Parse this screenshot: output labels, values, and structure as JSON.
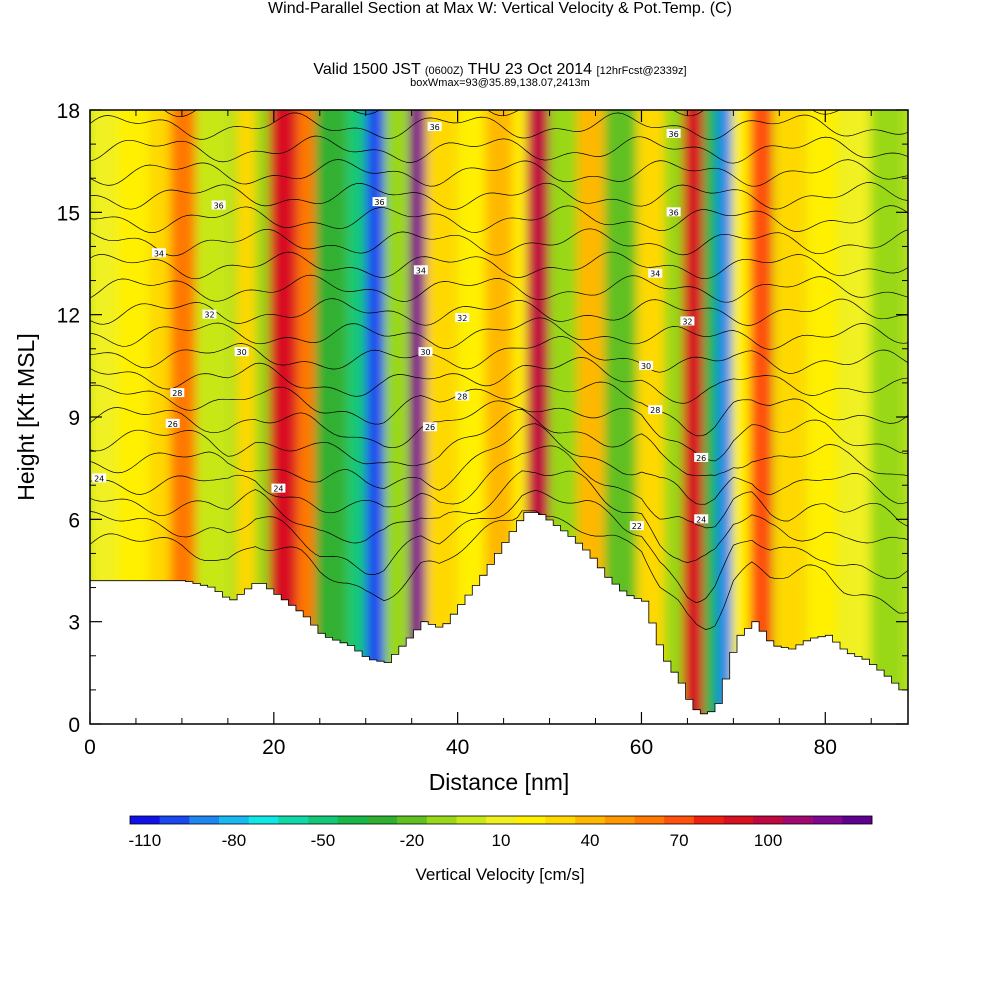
{
  "header": {
    "title": "Wind-Parallel Section at Max W: Vertical Velocity & Pot.Temp.",
    "title_unit": "(C)",
    "valid_prefix": "Valid 1500 JST",
    "valid_z": "(0600Z)",
    "valid_date": "THU 23 Oct 2014",
    "forecast": "[12hrFcst@2339z]",
    "box_info": "boxWmax=93@35.89,138.07,2413m"
  },
  "chart_data": {
    "type": "heatmap",
    "title": "Wind-Parallel Section at Max W: Vertical Velocity & Pot.Temp.",
    "xlabel": "Distance [nm]",
    "ylabel": "Height [Kft MSL]",
    "xlim": [
      0,
      89
    ],
    "ylim": [
      0,
      18
    ],
    "xticks": [
      "0",
      "20",
      "40",
      "60",
      "80"
    ],
    "yticks": [
      "0",
      "3",
      "6",
      "9",
      "12",
      "15",
      "18"
    ],
    "colorbar": {
      "title": "Vertical Velocity [cm/s]",
      "labels": [
        "-110",
        "-80",
        "-50",
        "-20",
        "10",
        "40",
        "70",
        "100"
      ],
      "colors": [
        "#1010e8",
        "#1a48f0",
        "#1e86f0",
        "#18b8f0",
        "#10e8e8",
        "#10d8a8",
        "#12c878",
        "#18b848",
        "#30b030",
        "#60c020",
        "#98d818",
        "#c8e818",
        "#f0f020",
        "#fff000",
        "#ffd800",
        "#ffb800",
        "#ff9800",
        "#ff7800",
        "#ff5010",
        "#f02010",
        "#d81020",
        "#c00840",
        "#a00870",
        "#800890",
        "#600090"
      ]
    },
    "velocity_bands": [
      {
        "x": 1.5,
        "w": 3,
        "value": 0
      },
      {
        "x": 4.5,
        "w": 3,
        "value": 10
      },
      {
        "x": 7.5,
        "w": 2,
        "value": 20
      },
      {
        "x": 10,
        "w": 2.5,
        "value": 45
      },
      {
        "x": 13,
        "w": 3,
        "value": -5
      },
      {
        "x": 17,
        "w": 2,
        "value": 20
      },
      {
        "x": 19,
        "w": 2,
        "value": -20
      },
      {
        "x": 21,
        "w": 3,
        "value": 70
      },
      {
        "x": 23.5,
        "w": 2,
        "value": 40
      },
      {
        "x": 26,
        "w": 3,
        "value": -35
      },
      {
        "x": 29,
        "w": 2,
        "value": -50
      },
      {
        "x": 31,
        "w": 2,
        "value": -100
      },
      {
        "x": 33,
        "w": 2,
        "value": -15
      },
      {
        "x": 35.5,
        "w": 1.5,
        "value": 100
      },
      {
        "x": 38,
        "w": 3,
        "value": 20
      },
      {
        "x": 41.5,
        "w": 3,
        "value": 5
      },
      {
        "x": 44.5,
        "w": 3,
        "value": 30
      },
      {
        "x": 47,
        "w": 2,
        "value": 10
      },
      {
        "x": 48.5,
        "w": 2,
        "value": 75
      },
      {
        "x": 51.5,
        "w": 3,
        "value": -15
      },
      {
        "x": 54.5,
        "w": 3,
        "value": 30
      },
      {
        "x": 57.5,
        "w": 3,
        "value": -25
      },
      {
        "x": 61,
        "w": 3,
        "value": 20
      },
      {
        "x": 63.5,
        "w": 2,
        "value": -15
      },
      {
        "x": 65.5,
        "w": 2,
        "value": 70
      },
      {
        "x": 67.5,
        "w": 1.5,
        "value": -40
      },
      {
        "x": 69,
        "w": 1.5,
        "value": -90
      },
      {
        "x": 70.8,
        "w": 2,
        "value": 10
      },
      {
        "x": 72.8,
        "w": 2,
        "value": 50
      },
      {
        "x": 76,
        "w": 3,
        "value": 20
      },
      {
        "x": 79.5,
        "w": 3,
        "value": 5
      },
      {
        "x": 83,
        "w": 3,
        "value": 0
      },
      {
        "x": 86.5,
        "w": 3,
        "value": -20
      }
    ],
    "terrain": {
      "x": [
        0,
        5,
        10,
        13,
        15,
        18,
        20,
        23,
        25,
        28,
        30,
        32,
        34,
        36,
        38,
        40,
        42,
        44,
        46,
        47,
        48.5,
        50,
        52,
        54,
        56,
        58,
        60,
        62,
        64,
        65,
        66,
        67,
        68,
        69,
        70,
        72,
        74,
        76,
        78,
        80,
        82,
        84,
        86,
        88,
        89
      ],
      "y": [
        4.2,
        4.2,
        4.2,
        4.0,
        3.6,
        4.2,
        3.8,
        3.2,
        2.6,
        2.3,
        1.9,
        1.8,
        2.4,
        3.0,
        2.8,
        3.5,
        4.2,
        5.0,
        5.8,
        6.2,
        6.2,
        5.9,
        5.5,
        5.0,
        4.3,
        3.8,
        3.6,
        2.0,
        1.2,
        0.6,
        0.3,
        0.3,
        0.6,
        1.5,
        2.5,
        3.0,
        2.3,
        2.2,
        2.5,
        2.6,
        2.1,
        1.9,
        1.5,
        1.0,
        1.0
      ]
    },
    "isotherm_labels": [
      {
        "x": 37.5,
        "y": 17.5,
        "text": "36"
      },
      {
        "x": 63.5,
        "y": 17.3,
        "text": "36"
      },
      {
        "x": 14,
        "y": 15.2,
        "text": "36"
      },
      {
        "x": 31.5,
        "y": 15.3,
        "text": "36"
      },
      {
        "x": 63.5,
        "y": 15.0,
        "text": "36"
      },
      {
        "x": 7.5,
        "y": 13.8,
        "text": "34"
      },
      {
        "x": 36,
        "y": 13.3,
        "text": "34"
      },
      {
        "x": 61.5,
        "y": 13.2,
        "text": "34"
      },
      {
        "x": 13,
        "y": 12.0,
        "text": "32"
      },
      {
        "x": 40.5,
        "y": 11.9,
        "text": "32"
      },
      {
        "x": 65,
        "y": 11.8,
        "text": "32"
      },
      {
        "x": 16.5,
        "y": 10.9,
        "text": "30"
      },
      {
        "x": 36.5,
        "y": 10.9,
        "text": "30"
      },
      {
        "x": 60.5,
        "y": 10.5,
        "text": "30"
      },
      {
        "x": 9.5,
        "y": 9.7,
        "text": "28"
      },
      {
        "x": 40.5,
        "y": 9.6,
        "text": "28"
      },
      {
        "x": 61.5,
        "y": 9.2,
        "text": "28"
      },
      {
        "x": 9,
        "y": 8.8,
        "text": "26"
      },
      {
        "x": 37,
        "y": 8.7,
        "text": "26"
      },
      {
        "x": 66.5,
        "y": 7.8,
        "text": "26"
      },
      {
        "x": 1,
        "y": 7.2,
        "text": "24"
      },
      {
        "x": 20.5,
        "y": 6.9,
        "text": "24"
      },
      {
        "x": 66.5,
        "y": 6.0,
        "text": "24"
      },
      {
        "x": 59.5,
        "y": 5.8,
        "text": "22"
      }
    ]
  }
}
